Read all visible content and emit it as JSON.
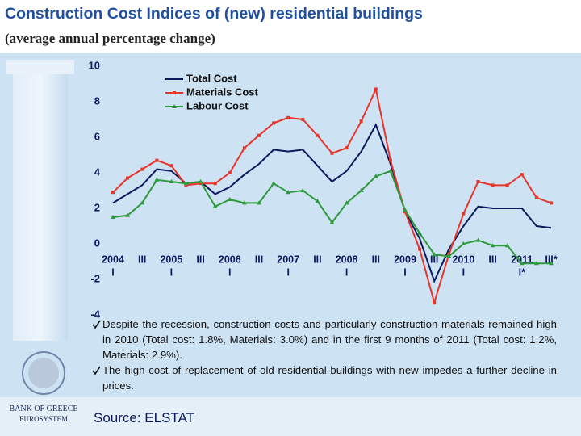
{
  "header": {
    "title": "Construction Cost Indices of (new) residential buildings",
    "subtitle": "(average annual percentage change)"
  },
  "chart_data": {
    "type": "line",
    "categories": [
      [
        "2004",
        "I"
      ],
      null,
      [
        "III"
      ],
      null,
      [
        "2005",
        "I"
      ],
      null,
      [
        "III"
      ],
      null,
      [
        "2006",
        "I"
      ],
      null,
      [
        "III"
      ],
      null,
      [
        "2007",
        "I"
      ],
      null,
      [
        "III"
      ],
      null,
      [
        "2008",
        "I"
      ],
      null,
      [
        "III"
      ],
      null,
      [
        "2009",
        "I"
      ],
      null,
      [
        "III"
      ],
      null,
      [
        "2010",
        "I"
      ],
      null,
      [
        "III"
      ],
      null,
      [
        "2011",
        "I*"
      ],
      null,
      [
        "III*"
      ]
    ],
    "series": [
      {
        "name": "Total Cost",
        "color": "#0b1a5e",
        "marker": "none",
        "values": [
          2.3,
          2.8,
          3.3,
          4.2,
          4.1,
          3.4,
          3.5,
          2.8,
          3.2,
          3.9,
          4.5,
          5.3,
          5.2,
          5.3,
          4.4,
          3.5,
          4.1,
          5.2,
          6.7,
          4.5,
          1.8,
          0.3,
          -2.1,
          -0.3,
          1.0,
          2.1,
          2.0,
          2.0,
          2.0,
          1.0,
          0.9
        ]
      },
      {
        "name": "Materials Cost",
        "color": "#e8352b",
        "marker": "square",
        "values": [
          2.9,
          3.7,
          4.2,
          4.7,
          4.4,
          3.3,
          3.4,
          3.4,
          4.0,
          5.4,
          6.1,
          6.8,
          7.1,
          7.0,
          6.1,
          5.1,
          5.4,
          6.9,
          8.7,
          4.7,
          1.8,
          -0.3,
          -3.3,
          -0.6,
          1.7,
          3.5,
          3.3,
          3.3,
          3.9,
          2.6,
          2.3
        ]
      },
      {
        "name": "Labour Cost",
        "color": "#2e9a3c",
        "marker": "triangle",
        "values": [
          1.5,
          1.6,
          2.3,
          3.6,
          3.5,
          3.4,
          3.5,
          2.1,
          2.5,
          2.3,
          2.3,
          3.4,
          2.9,
          3.0,
          2.4,
          1.2,
          2.3,
          3.0,
          3.8,
          4.1,
          1.9,
          0.6,
          -0.6,
          -0.7,
          0.0,
          0.2,
          -0.1,
          -0.1,
          -1.1,
          -1.1,
          -1.1
        ]
      }
    ],
    "ylim": [
      -4,
      10
    ],
    "yticks": [
      -4,
      -2,
      0,
      2,
      4,
      6,
      8,
      10
    ],
    "grid": false,
    "legend": "upper left"
  },
  "notes": [
    "Despite the recession, construction costs and particularly construction materials remained high in 2010 (Total cost: 1.8%, Materials: 3.0%) and in the first 9 months of 2011 (Total cost: 1.2%, Materials: 2.9%).",
    "The high cost of replacement of old residential buildings with new impedes a further decline in prices."
  ],
  "footer": {
    "bank": "BANK OF GREECE",
    "system": "EUROSYSTEM",
    "source": "Source: ELSTAT"
  }
}
